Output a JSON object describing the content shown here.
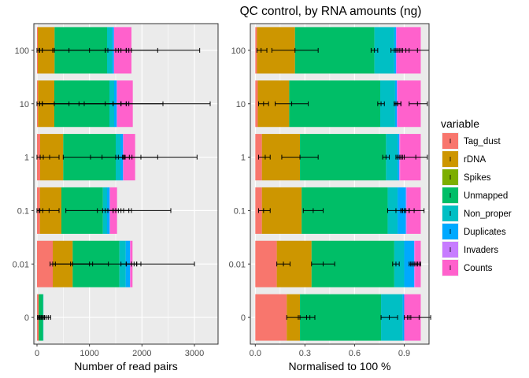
{
  "title": "QC control, by RNA amounts (ng)",
  "legend": {
    "title": "variable",
    "placement": "right"
  },
  "colors": {
    "Tag_dust": "#F8766D",
    "rDNA": "#CD9600",
    "Spikes": "#7CAE00",
    "Unmapped": "#00BE67",
    "Non_proper": "#00BFC4",
    "Duplicates": "#00A9FF",
    "Invaders": "#C77CFF",
    "Counts": "#FF61CC",
    "panel_bg": "#EBEBEB",
    "grid": "#FFFFFF"
  },
  "chart_data": [
    {
      "type": "bar",
      "orientation": "horizontal",
      "stacked": true,
      "xlabel": "Number of read pairs",
      "xlim": [
        -60,
        3450
      ],
      "xticks": [
        0,
        1000,
        2000,
        3000
      ],
      "xtick_labels": [
        "0",
        "1000",
        "2000",
        "3000"
      ],
      "categories": [
        "100",
        "10",
        "1",
        "0.1",
        "0.01",
        "0"
      ],
      "series": [
        {
          "name": "Tag_dust",
          "values": [
            15,
            20,
            60,
            55,
            300,
            30
          ]
        },
        {
          "name": "rDNA",
          "values": [
            320,
            310,
            440,
            410,
            380,
            5
          ]
        },
        {
          "name": "Spikes",
          "values": [
            0,
            0,
            0,
            0,
            0,
            0
          ]
        },
        {
          "name": "Unmapped",
          "values": [
            1000,
            1050,
            1000,
            790,
            890,
            80
          ]
        },
        {
          "name": "Non_proper",
          "values": [
            100,
            90,
            90,
            80,
            120,
            5
          ]
        },
        {
          "name": "Duplicates",
          "values": [
            30,
            50,
            50,
            50,
            80,
            0
          ]
        },
        {
          "name": "Invaders",
          "values": [
            5,
            5,
            5,
            5,
            10,
            0
          ]
        },
        {
          "name": "Counts",
          "values": [
            330,
            300,
            225,
            135,
            40,
            0
          ]
        }
      ],
      "error_bars": [
        [
          {
            "mean": 50,
            "lo": 0,
            "hi": 100
          },
          {
            "mean": 330,
            "lo": 40,
            "hi": 610
          },
          {
            "mean": 1000,
            "lo": 300,
            "hi": 1700
          },
          {
            "mean": 1500,
            "lo": 1300,
            "hi": 1700
          },
          {
            "mean": 1550,
            "lo": 1350,
            "hi": 1750
          },
          {
            "mean": 1800,
            "lo": 1300,
            "hi": 2300
          },
          {
            "mean": 1600,
            "lo": 100,
            "hi": 3100
          }
        ],
        [
          {
            "mean": 50,
            "lo": 0,
            "hi": 100
          },
          {
            "mean": 330,
            "lo": 50,
            "hi": 610
          },
          {
            "mean": 900,
            "lo": 100,
            "hi": 1700
          },
          {
            "mean": 1450,
            "lo": 1300,
            "hi": 1600
          },
          {
            "mean": 1600,
            "lo": 1450,
            "hi": 1750
          },
          {
            "mean": 1600,
            "lo": 800,
            "hi": 2400
          },
          {
            "mean": 1700,
            "lo": 100,
            "hi": 3300
          }
        ],
        [
          {
            "mean": 60,
            "lo": 0,
            "hi": 120
          },
          {
            "mean": 240,
            "lo": 60,
            "hi": 420
          },
          {
            "mean": 1240,
            "lo": 500,
            "hi": 1980
          },
          {
            "mean": 1630,
            "lo": 1500,
            "hi": 1760
          },
          {
            "mean": 1680,
            "lo": 1550,
            "hi": 1810
          },
          {
            "mean": 1660,
            "lo": 1020,
            "hi": 2300
          },
          {
            "mean": 1660,
            "lo": 1650,
            "hi": 3050
          }
        ],
        [
          {
            "mean": 55,
            "lo": 0,
            "hi": 110
          },
          {
            "mean": 230,
            "lo": 40,
            "hi": 420
          },
          {
            "mean": 1150,
            "lo": 550,
            "hi": 1750
          },
          {
            "mean": 1450,
            "lo": 1300,
            "hi": 1600
          },
          {
            "mean": 1500,
            "lo": 1350,
            "hi": 1650
          },
          {
            "mean": 1450,
            "lo": 1250,
            "hi": 1800
          },
          {
            "mean": 1550,
            "lo": 1500,
            "hi": 2550
          }
        ],
        [
          {
            "mean": 300,
            "lo": 250,
            "hi": 350
          },
          {
            "mean": 680,
            "lo": 300,
            "hi": 1060
          },
          {
            "mean": 1000,
            "lo": 640,
            "hi": 1360
          },
          {
            "mean": 1700,
            "lo": 1600,
            "hi": 1800
          },
          {
            "mean": 1800,
            "lo": 1700,
            "hi": 1900
          },
          {
            "mean": 1850,
            "lo": 1800,
            "hi": 1980
          },
          {
            "mean": 1900,
            "lo": 300,
            "hi": 3000
          }
        ],
        [
          {
            "mean": 30,
            "lo": 10,
            "hi": 50
          },
          {
            "mean": 100,
            "lo": 60,
            "hi": 140
          },
          {
            "mean": 150,
            "lo": 80,
            "hi": 220
          },
          {
            "mean": 190,
            "lo": 120,
            "hi": 260
          }
        ]
      ]
    },
    {
      "type": "bar",
      "orientation": "horizontal",
      "stacked": true,
      "xlabel": "Normalised to 100 %",
      "xlim": [
        -0.03,
        1.05
      ],
      "xticks": [
        0,
        0.3,
        0.6,
        0.9
      ],
      "xtick_labels": [
        "0.0",
        "0.3",
        "0.6",
        "0.9"
      ],
      "categories": [
        "100",
        "10",
        "1",
        "0.1",
        "0.01",
        "0"
      ],
      "series": [
        {
          "name": "Tag_dust",
          "values": [
            0.01,
            0.015,
            0.04,
            0.04,
            0.13,
            0.19
          ]
        },
        {
          "name": "rDNA",
          "values": [
            0.23,
            0.19,
            0.23,
            0.24,
            0.21,
            0.08
          ]
        },
        {
          "name": "Spikes",
          "values": [
            0,
            0,
            0,
            0,
            0,
            0
          ]
        },
        {
          "name": "Unmapped",
          "values": [
            0.48,
            0.55,
            0.52,
            0.52,
            0.5,
            0.49
          ]
        },
        {
          "name": "Non_proper",
          "values": [
            0.12,
            0.09,
            0.07,
            0.06,
            0.06,
            0.13
          ]
        },
        {
          "name": "Duplicates",
          "values": [
            0.01,
            0.01,
            0.01,
            0.05,
            0.06,
            0.01
          ]
        },
        {
          "name": "Invaders",
          "values": [
            0.005,
            0.005,
            0.005,
            0.005,
            0.005,
            0
          ]
        },
        {
          "name": "Counts",
          "values": [
            0.145,
            0.14,
            0.125,
            0.085,
            0.035,
            0.1
          ]
        }
      ],
      "error_bars": [
        [
          {
            "mean": 0.035,
            "lo": 0.01,
            "hi": 0.07
          },
          {
            "mean": 0.24,
            "lo": 0.1,
            "hi": 0.38
          },
          {
            "mean": 0.72,
            "lo": 0.7,
            "hi": 0.74
          },
          {
            "mean": 0.85,
            "lo": 0.84,
            "hi": 0.86
          },
          {
            "mean": 0.87,
            "lo": 0.85,
            "hi": 0.89
          },
          {
            "mean": 0.88,
            "lo": 0.82,
            "hi": 0.93
          },
          {
            "mean": 0.98,
            "lo": 0.91,
            "hi": 1.05
          }
        ],
        [
          {
            "mean": 0.05,
            "lo": 0.02,
            "hi": 0.08
          },
          {
            "mean": 0.22,
            "lo": 0.12,
            "hi": 0.32
          },
          {
            "mean": 0.76,
            "lo": 0.74,
            "hi": 0.78
          },
          {
            "mean": 0.85,
            "lo": 0.84,
            "hi": 0.86
          },
          {
            "mean": 0.86,
            "lo": 0.84,
            "hi": 0.88
          },
          {
            "mean": 0.86,
            "lo": 0.84,
            "hi": 0.88
          },
          {
            "mean": 0.98,
            "lo": 0.93,
            "hi": 1.04
          }
        ],
        [
          {
            "mean": 0.06,
            "lo": 0.02,
            "hi": 0.09
          },
          {
            "mean": 0.27,
            "lo": 0.16,
            "hi": 0.38
          },
          {
            "mean": 0.79,
            "lo": 0.77,
            "hi": 0.81
          },
          {
            "mean": 0.87,
            "lo": 0.85,
            "hi": 0.88
          },
          {
            "mean": 0.88,
            "lo": 0.86,
            "hi": 0.89
          },
          {
            "mean": 0.88,
            "lo": 0.86,
            "hi": 0.9
          },
          {
            "mean": 0.97,
            "lo": 0.9,
            "hi": 1.04
          }
        ],
        [
          {
            "mean": 0.05,
            "lo": 0.02,
            "hi": 0.09
          },
          {
            "mean": 0.35,
            "lo": 0.29,
            "hi": 0.41
          },
          {
            "mean": 0.85,
            "lo": 0.8,
            "hi": 0.9
          },
          {
            "mean": 0.89,
            "lo": 0.88,
            "hi": 0.91
          },
          {
            "mean": 0.9,
            "lo": 0.88,
            "hi": 0.93
          },
          {
            "mean": 0.91,
            "lo": 0.89,
            "hi": 0.93
          },
          {
            "mean": 0.96,
            "lo": 0.93,
            "hi": 1.02
          }
        ],
        [
          {
            "mean": 0.17,
            "lo": 0.13,
            "hi": 0.21
          },
          {
            "mean": 0.41,
            "lo": 0.34,
            "hi": 0.48
          },
          {
            "mean": 0.85,
            "lo": 0.83,
            "hi": 0.87
          },
          {
            "mean": 0.94,
            "lo": 0.93,
            "hi": 0.95
          },
          {
            "mean": 0.96,
            "lo": 0.94,
            "hi": 0.98
          },
          {
            "mean": 0.97,
            "lo": 0.95,
            "hi": 0.99
          },
          {
            "mean": 0.98,
            "lo": 0.96,
            "hi": 1.0
          }
        ],
        [
          {
            "mean": 0.26,
            "lo": 0.19,
            "hi": 0.33
          },
          {
            "mean": 0.31,
            "lo": 0.27,
            "hi": 0.36
          },
          {
            "mean": 0.81,
            "lo": 0.76,
            "hi": 0.86
          },
          {
            "mean": 0.92,
            "lo": 0.9,
            "hi": 0.94
          },
          {
            "mean": 0.99,
            "lo": 0.93,
            "hi": 1.06
          }
        ]
      ]
    }
  ]
}
